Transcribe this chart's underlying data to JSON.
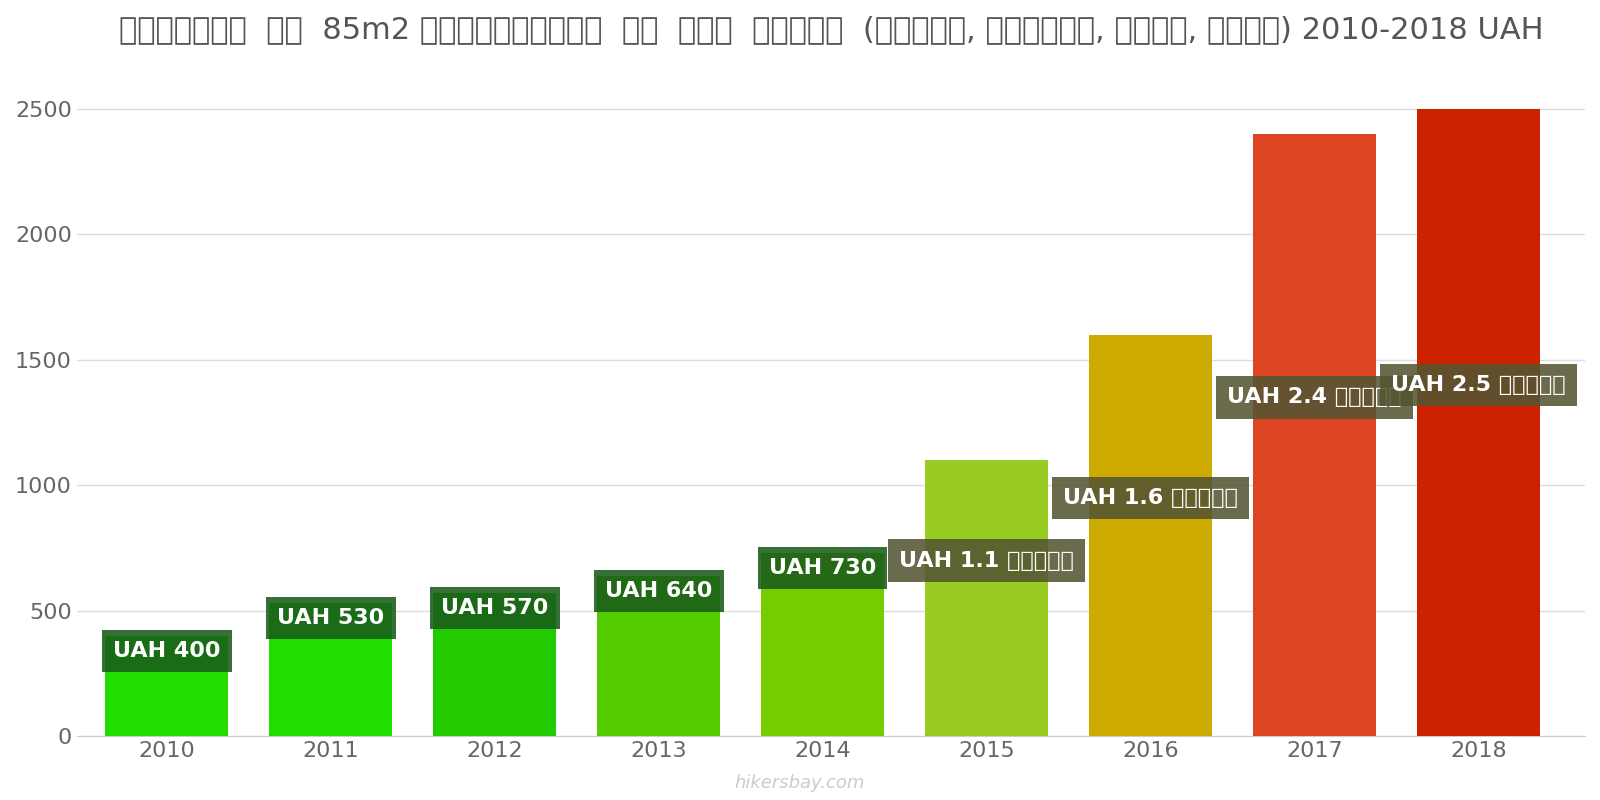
{
  "years": [
    2010,
    2011,
    2012,
    2013,
    2014,
    2015,
    2016,
    2017,
    2018
  ],
  "values": [
    400,
    530,
    570,
    640,
    730,
    1100,
    1600,
    2400,
    2500
  ],
  "bar_colors": [
    "#22dd00",
    "#22dd00",
    "#22cc00",
    "#55cc00",
    "#77cc00",
    "#99cc22",
    "#ccaa00",
    "#dd4422",
    "#cc2200"
  ],
  "label_texts": [
    "UAH 400",
    "UAH 530",
    "UAH 570",
    "UAH 640",
    "UAH 730",
    "UAH 1.1 हज़ार",
    "UAH 1.6 हज़ार",
    "UAH 2.4 हज़ार",
    "UAH 2.5 हज़ार"
  ],
  "label_box_colors": [
    "#1a5c1a",
    "#1a5c1a",
    "#1a5c1a",
    "#1a5c1a",
    "#1a5c1a",
    "#555533",
    "#555533",
    "#555533",
    "#555533"
  ],
  "title": "यूक्रेन  एक  85m2 अपार्टमेंट  के  लिए  शुल्क  (बिजली, हीटिंग, पानी, कचरा) 2010-2018 UAH",
  "ylim": [
    0,
    2700
  ],
  "yticks": [
    0,
    500,
    1000,
    1500,
    2000,
    2500
  ],
  "watermark": "hikersbay.com",
  "background_color": "#ffffff",
  "label_text_color": "#ffffff",
  "title_fontsize": 22,
  "tick_fontsize": 16,
  "label_fontsize": 16
}
